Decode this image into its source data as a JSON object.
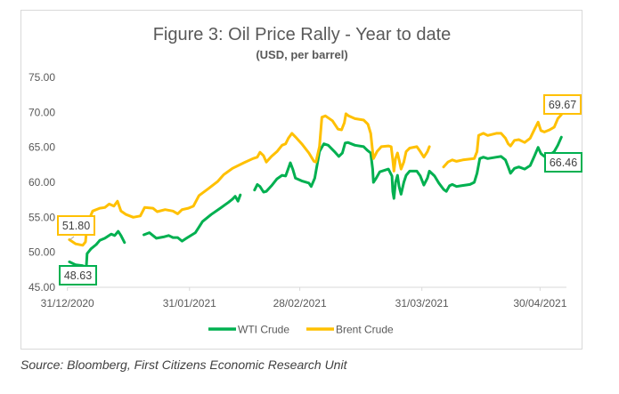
{
  "chart_data": {
    "type": "line",
    "title": "Figure 3: Oil Price Rally - Year to date",
    "subtitle": "(USD, per barrel)",
    "xlabel": "",
    "ylabel": "",
    "x_ticks": [
      {
        "day": 0,
        "label": "31/12/2020"
      },
      {
        "day": 31,
        "label": "31/01/2021"
      },
      {
        "day": 59,
        "label": "28/02/2021"
      },
      {
        "day": 90,
        "label": "31/03/2021"
      },
      {
        "day": 120,
        "label": "30/04/2021"
      }
    ],
    "xlim": [
      0,
      126.7
    ],
    "ylim": [
      45,
      75
    ],
    "y_ticks": [
      "75.00",
      "70.00",
      "65.00",
      "60.00",
      "55.00",
      "50.00",
      "45.00"
    ],
    "y_tick_values": [
      75,
      70,
      65,
      60,
      55,
      50,
      45
    ],
    "grid": false,
    "legend_position": "bottom",
    "series": [
      {
        "name": "WTI Crude",
        "color": "#00b050",
        "segments": [
          [
            [
              0.5,
              48.63
            ],
            [
              2.1,
              48.2
            ],
            [
              3.7,
              48.1
            ],
            [
              4.8,
              47.9
            ],
            [
              5.0,
              49.8
            ],
            [
              6.0,
              50.5
            ],
            [
              7.3,
              51.1
            ],
            [
              8.2,
              51.7
            ],
            [
              9.5,
              52.0
            ],
            [
              11.1,
              52.6
            ],
            [
              12.0,
              52.4
            ],
            [
              12.9,
              53.0
            ],
            [
              13.6,
              52.4
            ],
            [
              14.5,
              51.4
            ]
          ],
          [
            [
              19.4,
              52.5
            ],
            [
              20.8,
              52.8
            ],
            [
              22.6,
              52.0
            ],
            [
              24.4,
              52.2
            ],
            [
              25.7,
              52.4
            ],
            [
              26.8,
              52.1
            ],
            [
              28.0,
              52.1
            ],
            [
              29.1,
              51.6
            ],
            [
              30.2,
              52.0
            ],
            [
              32.5,
              52.8
            ],
            [
              34.3,
              54.4
            ],
            [
              36.5,
              55.4
            ],
            [
              38.8,
              56.3
            ],
            [
              40.8,
              57.1
            ],
            [
              41.9,
              57.6
            ],
            [
              42.6,
              58.0
            ],
            [
              43.3,
              57.3
            ],
            [
              43.9,
              58.2
            ]
          ],
          [
            [
              47.5,
              58.9
            ],
            [
              48.2,
              59.7
            ],
            [
              48.9,
              59.4
            ],
            [
              49.8,
              58.6
            ],
            [
              50.5,
              58.7
            ],
            [
              51.8,
              59.5
            ],
            [
              53.2,
              60.5
            ],
            [
              54.5,
              61.0
            ],
            [
              55.4,
              60.9
            ],
            [
              56.1,
              62.0
            ],
            [
              56.6,
              62.8
            ],
            [
              57.2,
              61.9
            ],
            [
              57.9,
              60.6
            ],
            [
              59.5,
              60.2
            ],
            [
              61.3,
              59.9
            ],
            [
              61.9,
              59.4
            ],
            [
              62.8,
              60.6
            ],
            [
              64.0,
              64.4
            ],
            [
              65.1,
              65.5
            ],
            [
              66.2,
              65.3
            ],
            [
              67.8,
              64.4
            ],
            [
              68.9,
              63.7
            ],
            [
              69.8,
              64.2
            ],
            [
              70.5,
              65.6
            ],
            [
              71.2,
              65.7
            ],
            [
              73.0,
              65.3
            ],
            [
              75.2,
              65.1
            ],
            [
              76.1,
              64.6
            ],
            [
              77.0,
              64.2
            ],
            [
              77.5,
              61.9
            ],
            [
              77.7,
              60.0
            ],
            [
              78.4,
              60.6
            ],
            [
              79.3,
              61.5
            ],
            [
              81.5,
              61.9
            ],
            [
              82.4,
              60.9
            ],
            [
              82.6,
              58.7
            ],
            [
              82.9,
              57.7
            ],
            [
              83.3,
              60.0
            ],
            [
              83.8,
              61.0
            ],
            [
              84.2,
              59.4
            ],
            [
              84.7,
              58.3
            ],
            [
              85.4,
              60.0
            ],
            [
              86.0,
              61.0
            ],
            [
              86.9,
              61.6
            ],
            [
              88.7,
              61.6
            ],
            [
              89.6,
              60.9
            ],
            [
              90.5,
              59.6
            ],
            [
              91.4,
              60.6
            ],
            [
              91.9,
              61.6
            ],
            [
              93.2,
              60.9
            ],
            [
              94.3,
              59.9
            ],
            [
              95.5,
              59.0
            ],
            [
              96.2,
              58.7
            ],
            [
              97.0,
              59.5
            ],
            [
              97.7,
              59.7
            ],
            [
              98.8,
              59.4
            ],
            [
              99.9,
              59.5
            ],
            [
              102.2,
              59.7
            ],
            [
              103.3,
              60.0
            ],
            [
              104.0,
              61.3
            ],
            [
              104.7,
              63.4
            ],
            [
              105.6,
              63.6
            ],
            [
              106.7,
              63.4
            ],
            [
              108.9,
              63.6
            ],
            [
              110.1,
              63.7
            ],
            [
              111.2,
              63.2
            ],
            [
              111.9,
              62.2
            ],
            [
              112.5,
              61.3
            ],
            [
              113.5,
              62.0
            ],
            [
              114.6,
              62.2
            ],
            [
              116.1,
              61.9
            ],
            [
              117.5,
              62.4
            ],
            [
              118.6,
              63.8
            ],
            [
              119.5,
              65.0
            ],
            [
              120.2,
              64.1
            ],
            [
              121.1,
              63.7
            ],
            [
              122.4,
              63.9
            ],
            [
              123.6,
              64.4
            ],
            [
              124.5,
              65.3
            ],
            [
              125.4,
              66.46
            ]
          ]
        ],
        "labels": [
          {
            "day": 0.5,
            "value": 48.63,
            "text": "48.63"
          },
          {
            "day": 125.4,
            "value": 66.46,
            "text": "66.46"
          }
        ]
      },
      {
        "name": "Brent Crude",
        "color": "#ffc000",
        "segments": [
          [
            [
              0.5,
              51.8
            ],
            [
              2.1,
              51.2
            ],
            [
              3.9,
              51.0
            ],
            [
              4.6,
              51.5
            ],
            [
              5.0,
              54.0
            ],
            [
              6.4,
              55.9
            ],
            [
              8.2,
              56.3
            ],
            [
              9.5,
              56.4
            ],
            [
              10.6,
              56.9
            ],
            [
              11.8,
              56.6
            ],
            [
              12.7,
              57.3
            ],
            [
              13.6,
              55.9
            ],
            [
              14.9,
              55.4
            ],
            [
              16.7,
              55.0
            ],
            [
              18.5,
              55.2
            ],
            [
              19.6,
              56.4
            ],
            [
              21.7,
              56.3
            ],
            [
              22.8,
              55.8
            ],
            [
              24.8,
              56.1
            ],
            [
              26.8,
              55.9
            ],
            [
              28.0,
              55.5
            ],
            [
              29.1,
              56.1
            ],
            [
              30.7,
              56.3
            ],
            [
              32.0,
              56.6
            ],
            [
              33.4,
              58.1
            ],
            [
              35.8,
              59.1
            ],
            [
              38.1,
              60.1
            ],
            [
              39.7,
              61.1
            ],
            [
              41.9,
              62.0
            ],
            [
              44.8,
              62.8
            ],
            [
              47.1,
              63.4
            ],
            [
              48.2,
              63.6
            ],
            [
              48.9,
              64.3
            ],
            [
              49.8,
              63.8
            ],
            [
              50.5,
              62.9
            ],
            [
              51.8,
              63.7
            ],
            [
              53.2,
              64.4
            ],
            [
              54.5,
              65.3
            ],
            [
              55.4,
              65.5
            ],
            [
              56.1,
              66.3
            ],
            [
              57.0,
              67.0
            ],
            [
              57.9,
              66.5
            ],
            [
              59.5,
              65.5
            ],
            [
              61.3,
              64.2
            ],
            [
              62.6,
              63.0
            ],
            [
              63.1,
              62.9
            ],
            [
              64.0,
              65.1
            ],
            [
              64.6,
              69.3
            ],
            [
              65.5,
              69.5
            ],
            [
              67.3,
              68.8
            ],
            [
              68.7,
              67.6
            ],
            [
              69.6,
              67.5
            ],
            [
              70.3,
              68.5
            ],
            [
              70.7,
              69.8
            ],
            [
              71.4,
              69.5
            ],
            [
              73.0,
              69.1
            ],
            [
              75.2,
              68.9
            ],
            [
              76.3,
              68.3
            ],
            [
              77.0,
              67.0
            ],
            [
              77.5,
              64.4
            ],
            [
              77.7,
              63.4
            ],
            [
              78.6,
              64.4
            ],
            [
              79.7,
              65.1
            ],
            [
              81.5,
              65.2
            ],
            [
              82.2,
              65.1
            ],
            [
              82.6,
              63.2
            ],
            [
              82.9,
              61.6
            ],
            [
              83.3,
              63.4
            ],
            [
              83.8,
              64.2
            ],
            [
              84.2,
              63.2
            ],
            [
              84.7,
              61.9
            ],
            [
              85.4,
              62.9
            ],
            [
              86.0,
              64.4
            ],
            [
              86.9,
              64.9
            ],
            [
              88.7,
              65.1
            ],
            [
              89.6,
              64.4
            ],
            [
              90.5,
              63.6
            ],
            [
              91.4,
              64.4
            ],
            [
              91.9,
              65.1
            ]
          ],
          [
            [
              95.5,
              62.2
            ],
            [
              96.6,
              62.9
            ],
            [
              97.7,
              63.2
            ],
            [
              98.8,
              63.0
            ],
            [
              100.4,
              63.2
            ],
            [
              103.3,
              63.4
            ],
            [
              104.0,
              64.4
            ],
            [
              104.4,
              66.7
            ],
            [
              105.6,
              67.0
            ],
            [
              106.7,
              66.7
            ],
            [
              108.9,
              67.0
            ],
            [
              110.1,
              67.0
            ],
            [
              111.2,
              66.3
            ],
            [
              111.9,
              65.5
            ],
            [
              112.5,
              65.2
            ],
            [
              113.5,
              66.0
            ],
            [
              114.6,
              66.1
            ],
            [
              116.1,
              65.7
            ],
            [
              117.5,
              66.3
            ],
            [
              118.6,
              67.6
            ],
            [
              119.5,
              68.6
            ],
            [
              120.2,
              67.4
            ],
            [
              121.1,
              67.2
            ],
            [
              122.4,
              67.5
            ],
            [
              123.6,
              67.9
            ],
            [
              124.5,
              69.1
            ],
            [
              125.4,
              69.67
            ]
          ]
        ],
        "labels": [
          {
            "day": 0.5,
            "value": 51.8,
            "text": "51.80"
          },
          {
            "day": 125.4,
            "value": 69.67,
            "text": "69.67"
          }
        ]
      }
    ]
  },
  "source": "Source: Bloomberg, First Citizens Economic Research Unit"
}
